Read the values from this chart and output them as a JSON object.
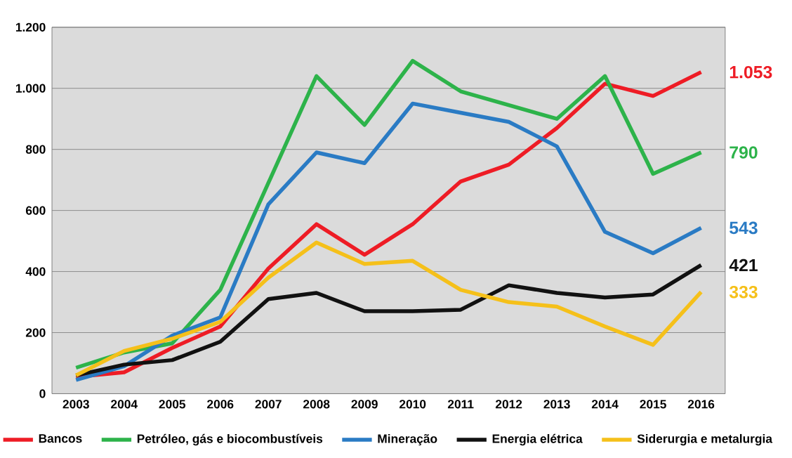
{
  "chart_data": {
    "type": "line",
    "categories": [
      "2003",
      "2004",
      "2005",
      "2006",
      "2007",
      "2008",
      "2009",
      "2010",
      "2011",
      "2012",
      "2013",
      "2014",
      "2015",
      "2016"
    ],
    "series": [
      {
        "name": "Bancos",
        "color": "#ee1c25",
        "values": [
          55,
          70,
          150,
          220,
          410,
          555,
          455,
          555,
          695,
          750,
          870,
          1015,
          975,
          1053
        ],
        "value_labels": [
          null,
          null,
          null,
          null,
          null,
          null,
          null,
          null,
          null,
          null,
          null,
          null,
          null,
          "1.053"
        ]
      },
      {
        "name": "Petróleo, gás e biocombustíveis",
        "color": "#2db34a",
        "values": [
          85,
          135,
          165,
          340,
          690,
          1040,
          880,
          1090,
          990,
          945,
          900,
          1040,
          720,
          790
        ],
        "value_labels": [
          null,
          null,
          null,
          null,
          null,
          null,
          null,
          null,
          null,
          null,
          null,
          null,
          null,
          "790"
        ]
      },
      {
        "name": "Mineração",
        "color": "#2a7bc4",
        "values": [
          45,
          90,
          190,
          250,
          620,
          790,
          755,
          950,
          920,
          890,
          810,
          530,
          460,
          543
        ],
        "value_labels": [
          null,
          null,
          null,
          null,
          null,
          null,
          null,
          null,
          null,
          null,
          null,
          null,
          null,
          "543"
        ]
      },
      {
        "name": "Energia elétrica",
        "color": "#111111",
        "values": [
          60,
          95,
          110,
          170,
          310,
          330,
          270,
          270,
          275,
          355,
          330,
          315,
          325,
          421
        ],
        "value_labels": [
          null,
          null,
          null,
          null,
          null,
          null,
          null,
          null,
          null,
          null,
          null,
          null,
          null,
          "421"
        ]
      },
      {
        "name": "Siderurgia e metalurgia",
        "color": "#f5c01a",
        "values": [
          60,
          140,
          180,
          235,
          380,
          495,
          425,
          435,
          340,
          300,
          285,
          220,
          160,
          333
        ],
        "value_labels": [
          null,
          null,
          null,
          null,
          null,
          null,
          null,
          null,
          null,
          null,
          null,
          null,
          null,
          "333"
        ]
      }
    ],
    "ylim": [
      0,
      1200
    ],
    "yticks": [
      0,
      200,
      400,
      600,
      800,
      {
        "value": 1000,
        "label": "1.000"
      },
      {
        "value": 1200,
        "label": "1.200"
      }
    ],
    "grid": "y",
    "legend": "bottom",
    "marker": "none",
    "line_style": "solid"
  }
}
